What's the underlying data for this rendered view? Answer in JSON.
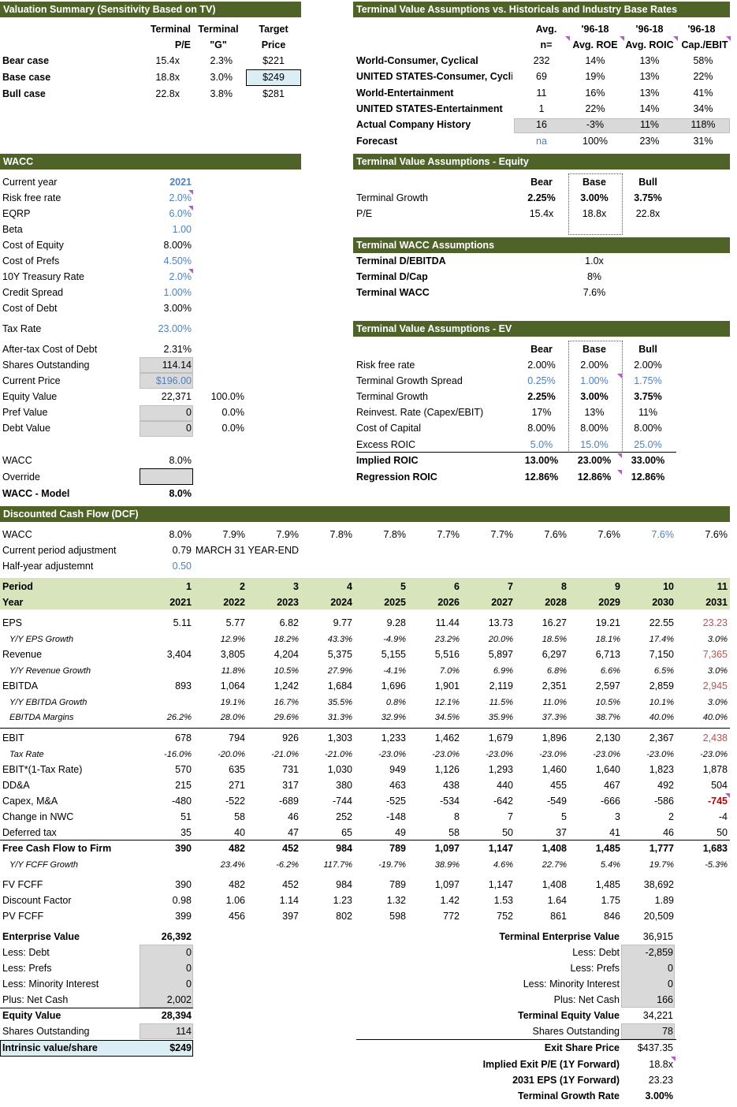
{
  "vs": {
    "title": "Valuation Summary (Sensitivity Based on TV)",
    "h1a": "Terminal",
    "h1b": "P/E",
    "h2a": "Terminal",
    "h2b": "\"G\"",
    "h3a": "Target",
    "h3b": "Price",
    "rows": [
      {
        "label": "Bear case",
        "pe": "15.4x",
        "g": "2.3%",
        "price": "$221"
      },
      {
        "label": "Base case",
        "pe": "18.8x",
        "g": "3.0%",
        "price": "$249"
      },
      {
        "label": "Bull case",
        "pe": "22.8x",
        "g": "3.8%",
        "price": "$281"
      }
    ]
  },
  "tva": {
    "title": "Terminal Value Assumptions vs. Historicals and Industry Base Rates",
    "h": [
      [
        "Avg.",
        "n="
      ],
      [
        "'96-18",
        "Avg. ROE"
      ],
      [
        "'96-18",
        "Avg. ROIC"
      ],
      [
        "'96-18",
        "Cap./EBIT"
      ]
    ],
    "rows": [
      {
        "label": "World-Consumer, Cyclical",
        "n": "232",
        "roe": "14%",
        "roic": "13%",
        "cap": "58%"
      },
      {
        "label": "UNITED STATES-Consumer, Cyclic",
        "n": "69",
        "roe": "19%",
        "roic": "13%",
        "cap": "22%"
      },
      {
        "label": "World-Entertainment",
        "n": "11",
        "roe": "16%",
        "roic": "13%",
        "cap": "41%"
      },
      {
        "label": "UNITED STATES-Entertainment",
        "n": "1",
        "roe": "22%",
        "roic": "14%",
        "cap": "34%"
      },
      {
        "label": "Actual Company History",
        "n": "16",
        "roe": "-3%",
        "roic": "11%",
        "cap": "118%"
      },
      {
        "label": "Forecast",
        "n": "na",
        "roe": "100%",
        "roic": "23%",
        "cap": "31%"
      }
    ]
  },
  "wacc": {
    "title": "WACC",
    "rows": [
      {
        "label": "Current year",
        "v": "2021"
      },
      {
        "label": "Risk free rate",
        "v": "2.0%"
      },
      {
        "label": "EQRP",
        "v": "6.0%"
      },
      {
        "label": "Beta",
        "v": "1.00"
      },
      {
        "label": "Cost of Equity",
        "v": "8.00%"
      },
      {
        "label": "Cost of Prefs",
        "v": "4.50%"
      },
      {
        "label": "10Y Treasury Rate",
        "v": "2.0%"
      },
      {
        "label": "Credit Spread",
        "v": "1.00%"
      },
      {
        "label": "Cost of Debt",
        "v": "3.00%"
      },
      {
        "label": "Tax Rate",
        "v": "23.00%"
      },
      {
        "label": "After-tax Cost of Debt",
        "v": "2.31%"
      },
      {
        "label": "Shares Outstanding",
        "v": "114.14"
      },
      {
        "label": "Current Price",
        "v": "$196.00"
      },
      {
        "label": "Equity Value",
        "v": "22,371",
        "pct": "100.0%"
      },
      {
        "label": "Pref Value",
        "v": "0",
        "pct": "0.0%"
      },
      {
        "label": "Debt Value",
        "v": "0",
        "pct": "0.0%"
      },
      {
        "label": "WACC",
        "v": "8.0%"
      },
      {
        "label": "Override",
        "v": ""
      },
      {
        "label": "WACC - Model",
        "v": "8.0%"
      }
    ]
  },
  "tve": {
    "title": "Terminal Value Assumptions - Equity",
    "h": [
      "Bear",
      "Base",
      "Bull"
    ],
    "rows": [
      {
        "label": "Terminal Growth",
        "v": [
          "2.25%",
          "3.00%",
          "3.75%"
        ]
      },
      {
        "label": "P/E",
        "v": [
          "15.4x",
          "18.8x",
          "22.8x"
        ]
      }
    ]
  },
  "twacc": {
    "title": "Terminal WACC Assumptions",
    "rows": [
      {
        "label": "Terminal D/EBITDA",
        "v": "1.0x"
      },
      {
        "label": "Terminal D/Cap",
        "v": "8%"
      },
      {
        "label": "Terminal WACC",
        "v": "7.6%"
      }
    ]
  },
  "tvev": {
    "title": "Terminal Value Assumptions - EV",
    "h": [
      "Bear",
      "Base",
      "Bull"
    ],
    "rows": [
      {
        "label": "Risk free rate",
        "v": [
          "2.00%",
          "2.00%",
          "2.00%"
        ]
      },
      {
        "label": "Terminal Growth Spread",
        "v": [
          "0.25%",
          "1.00%",
          "1.75%"
        ]
      },
      {
        "label": "Terminal Growth",
        "v": [
          "2.25%",
          "3.00%",
          "3.75%"
        ]
      },
      {
        "label": "Reinvest. Rate (Capex/EBIT)",
        "v": [
          "17%",
          "13%",
          "11%"
        ]
      },
      {
        "label": "Cost of Capital",
        "v": [
          "8.00%",
          "8.00%",
          "8.00%"
        ]
      },
      {
        "label": "Excess ROIC",
        "v": [
          "5.0%",
          "15.0%",
          "25.0%"
        ]
      },
      {
        "label": "Implied ROIC",
        "v": [
          "13.00%",
          "23.00%",
          "33.00%"
        ]
      },
      {
        "label": "Regression ROIC",
        "v": [
          "12.86%",
          "12.86%",
          "12.86%"
        ]
      }
    ]
  },
  "dcf": {
    "title": "Discounted Cash Flow (DCF)",
    "wacc_label": "WACC",
    "wacc": [
      "8.0%",
      "7.9%",
      "7.9%",
      "7.8%",
      "7.8%",
      "7.7%",
      "7.7%",
      "7.6%",
      "7.6%",
      "7.6%",
      "7.6%"
    ],
    "cpa_label": "Current period adjustment",
    "cpa": "0.79",
    "cpa_note": "MARCH 31 YEAR-END",
    "hya_label": "Half-year adjustemnt",
    "hya": "0.50",
    "period_label": "Period",
    "periods": [
      "1",
      "2",
      "3",
      "4",
      "5",
      "6",
      "7",
      "8",
      "9",
      "10",
      "11"
    ],
    "year_label": "Year",
    "years": [
      "2021",
      "2022",
      "2023",
      "2024",
      "2025",
      "2026",
      "2027",
      "2028",
      "2029",
      "2030",
      "2031"
    ],
    "rows": [
      {
        "label": "EPS",
        "v": [
          "5.11",
          "5.77",
          "6.82",
          "9.77",
          "9.28",
          "11.44",
          "13.73",
          "16.27",
          "19.21",
          "22.55",
          "23.23"
        ]
      },
      {
        "label": "Y/Y EPS Growth",
        "v": [
          "",
          "12.9%",
          "18.2%",
          "43.3%",
          "-4.9%",
          "23.2%",
          "20.0%",
          "18.5%",
          "18.1%",
          "17.4%",
          "3.0%"
        ]
      },
      {
        "label": "Revenue",
        "v": [
          "3,404",
          "3,805",
          "4,204",
          "5,375",
          "5,155",
          "5,516",
          "5,897",
          "6,297",
          "6,713",
          "7,150",
          "7,365"
        ]
      },
      {
        "label": "Y/Y Revenue Growth",
        "v": [
          "",
          "11.8%",
          "10.5%",
          "27.9%",
          "-4.1%",
          "7.0%",
          "6.9%",
          "6.8%",
          "6.6%",
          "6.5%",
          "3.0%"
        ]
      },
      {
        "label": "EBITDA",
        "v": [
          "893",
          "1,064",
          "1,242",
          "1,684",
          "1,696",
          "1,901",
          "2,119",
          "2,351",
          "2,597",
          "2,859",
          "2,945"
        ]
      },
      {
        "label": "Y/Y EBITDA Growth",
        "v": [
          "",
          "19.1%",
          "16.7%",
          "35.5%",
          "0.8%",
          "12.1%",
          "11.5%",
          "11.0%",
          "10.5%",
          "10.1%",
          "3.0%"
        ]
      },
      {
        "label": "EBITDA Margins",
        "v": [
          "26.2%",
          "28.0%",
          "29.6%",
          "31.3%",
          "32.9%",
          "34.5%",
          "35.9%",
          "37.3%",
          "38.7%",
          "40.0%",
          "40.0%"
        ]
      },
      {
        "label": "EBIT",
        "v": [
          "678",
          "794",
          "926",
          "1,303",
          "1,233",
          "1,462",
          "1,679",
          "1,896",
          "2,130",
          "2,367",
          "2,438"
        ]
      },
      {
        "label": "Tax Rate",
        "v": [
          "-16.0%",
          "-20.0%",
          "-21.0%",
          "-21.0%",
          "-23.0%",
          "-23.0%",
          "-23.0%",
          "-23.0%",
          "-23.0%",
          "-23.0%",
          "-23.0%"
        ]
      },
      {
        "label": "EBIT*(1-Tax Rate)",
        "v": [
          "570",
          "635",
          "731",
          "1,030",
          "949",
          "1,126",
          "1,293",
          "1,460",
          "1,640",
          "1,823",
          "1,878"
        ]
      },
      {
        "label": "DD&A",
        "v": [
          "215",
          "271",
          "317",
          "380",
          "463",
          "438",
          "440",
          "455",
          "467",
          "492",
          "504"
        ]
      },
      {
        "label": "Capex, M&A",
        "v": [
          "-480",
          "-522",
          "-689",
          "-744",
          "-525",
          "-534",
          "-642",
          "-549",
          "-666",
          "-586",
          "-745"
        ]
      },
      {
        "label": "Change in NWC",
        "v": [
          "51",
          "58",
          "46",
          "252",
          "-148",
          "8",
          "7",
          "5",
          "3",
          "2",
          "-4"
        ]
      },
      {
        "label": "Deferred tax",
        "v": [
          "35",
          "40",
          "47",
          "65",
          "49",
          "58",
          "50",
          "37",
          "41",
          "46",
          "50"
        ]
      },
      {
        "label": "Free Cash Flow to Firm",
        "v": [
          "390",
          "482",
          "452",
          "984",
          "789",
          "1,097",
          "1,147",
          "1,408",
          "1,485",
          "1,777",
          "1,683"
        ]
      },
      {
        "label": "Y/Y FCFF Growth",
        "v": [
          "",
          "23.4%",
          "-6.2%",
          "117.7%",
          "-19.7%",
          "38.9%",
          "4.6%",
          "22.7%",
          "5.4%",
          "19.7%",
          "-5.3%"
        ]
      },
      {
        "label": "FV FCFF",
        "v": [
          "390",
          "482",
          "452",
          "984",
          "789",
          "1,097",
          "1,147",
          "1,408",
          "1,485",
          "38,692",
          ""
        ]
      },
      {
        "label": "Discount Factor",
        "v": [
          "0.98",
          "1.06",
          "1.14",
          "1.23",
          "1.32",
          "1.42",
          "1.53",
          "1.64",
          "1.75",
          "1.89",
          ""
        ]
      },
      {
        "label": "PV FCFF",
        "v": [
          "399",
          "456",
          "397",
          "802",
          "598",
          "772",
          "752",
          "861",
          "846",
          "20,509",
          ""
        ]
      }
    ]
  },
  "ev": {
    "rows": [
      {
        "label": "Enterprise Value",
        "v": "26,392"
      },
      {
        "label": "Less: Debt",
        "v": "0"
      },
      {
        "label": "Less: Prefs",
        "v": "0"
      },
      {
        "label": "Less: Minority Interest",
        "v": "0"
      },
      {
        "label": "Plus: Net Cash",
        "v": "2,002"
      },
      {
        "label": "Equity Value",
        "v": "28,394"
      },
      {
        "label": "Shares Outstanding",
        "v": "114"
      },
      {
        "label": "Intrinsic value/share",
        "v": "$249"
      }
    ]
  },
  "tev": {
    "rows": [
      {
        "label": "Terminal Enterprise Value",
        "v": "36,915"
      },
      {
        "label": "Less: Debt",
        "v": "-2,859"
      },
      {
        "label": "Less: Prefs",
        "v": "0"
      },
      {
        "label": "Less: Minority Interest",
        "v": "0"
      },
      {
        "label": "Plus: Net Cash",
        "v": "166"
      },
      {
        "label": "Terminal Equity Value",
        "v": "34,221"
      },
      {
        "label": "Shares Outstanding",
        "v": "78"
      },
      {
        "label": "Exit Share Price",
        "v": "$437.35"
      },
      {
        "label": "Implied Exit P/E (1Y Forward)",
        "v": "18.8x"
      },
      {
        "label": "2031 EPS (1Y Forward)",
        "v": "23.23"
      },
      {
        "label": "Terminal Growth Rate",
        "v": "3.00%"
      }
    ]
  },
  "colors": {
    "header": "#4f6228",
    "band": "#d8e4bc",
    "input_blue": "#4e81bd",
    "gray_cell": "#d9d9d9",
    "highlight": "#dbeef3",
    "comment_marker": "#b05fc1"
  }
}
